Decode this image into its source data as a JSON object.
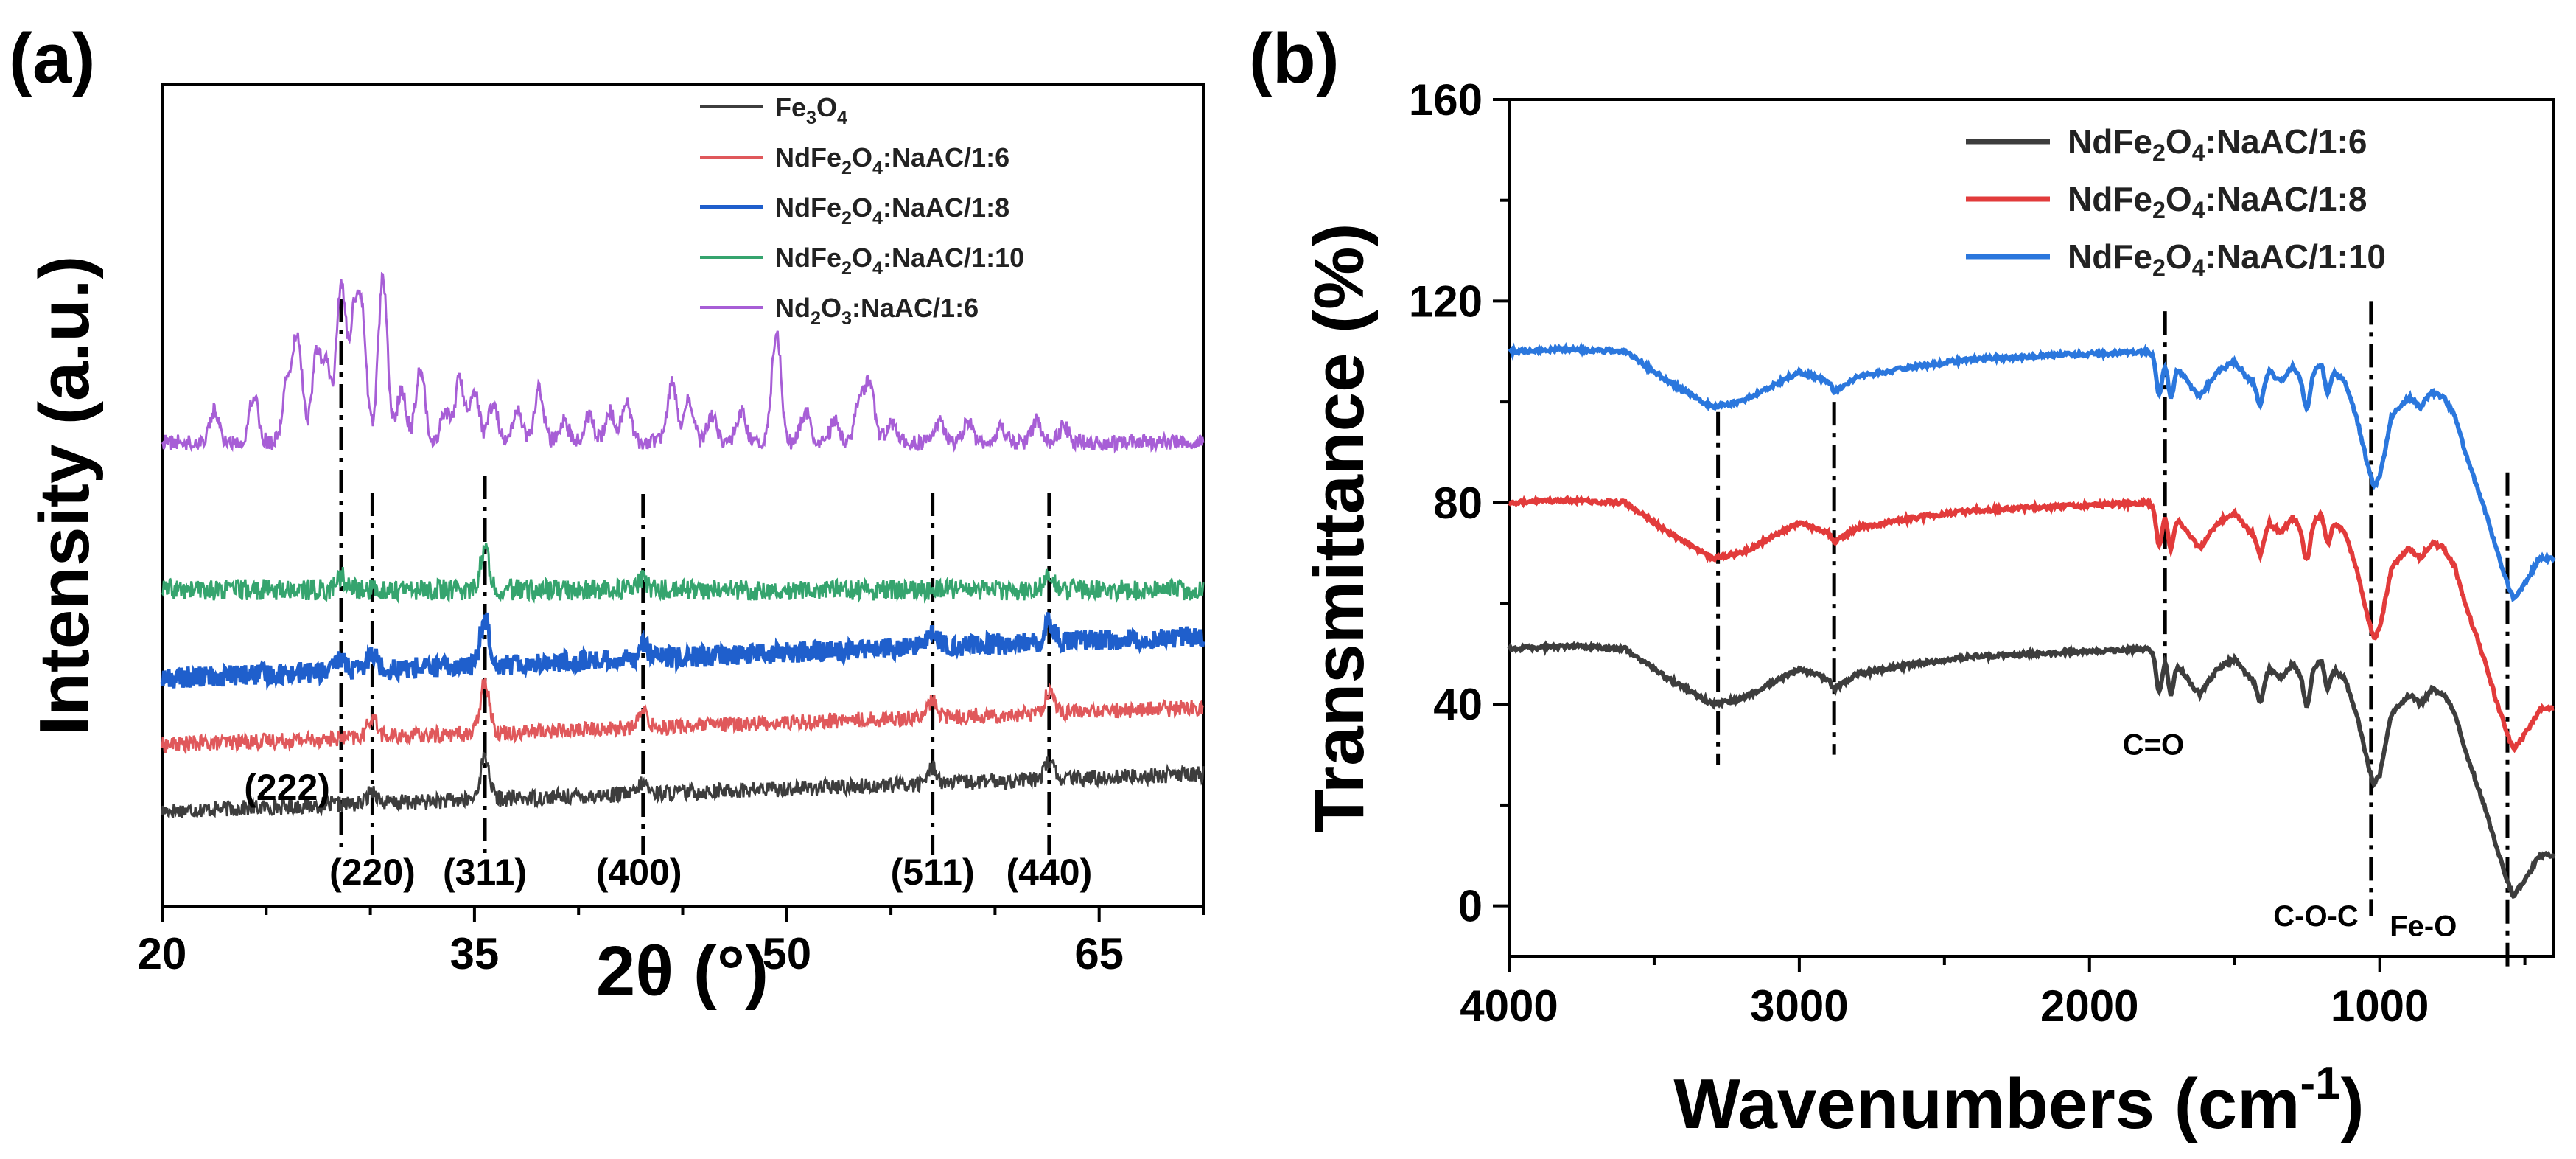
{
  "chart_data": [
    {
      "type": "line",
      "panel_label": "(a)",
      "xlabel": "2θ (°)",
      "ylabel": "Intensity (a.u.)",
      "xlim": [
        20,
        70
      ],
      "xticks": [
        20,
        35,
        50,
        65
      ],
      "legend_position": "top-right",
      "series": [
        {
          "name": "Fe3O4",
          "legend_parts": [
            "Fe",
            "3",
            "O",
            "4",
            ""
          ],
          "color": "#3d3d3d",
          "base": 0,
          "peaks": [
            [
              30.1,
              5
            ],
            [
              35.5,
              16
            ],
            [
              43.1,
              4
            ],
            [
              57.0,
              6
            ],
            [
              62.6,
              7
            ]
          ],
          "noise": 3,
          "drift": 14
        },
        {
          "name": "NdFe2O4:NaAC/1:6",
          "legend_parts": [
            "NdFe",
            "2",
            "O",
            "4",
            ":NaAC/1:6"
          ],
          "color": "#e0585b",
          "base": 1,
          "peaks": [
            [
              30.1,
              8
            ],
            [
              35.5,
              20
            ],
            [
              43.1,
              6
            ],
            [
              57.0,
              6
            ],
            [
              62.6,
              8
            ]
          ],
          "noise": 3,
          "drift": 14
        },
        {
          "name": "NdFe2O4:NaAC/1:8",
          "legend_parts": [
            "NdFe",
            "2",
            "O",
            "4",
            ":NaAC/1:8"
          ],
          "color": "#1f5fcc",
          "base": 2,
          "peaks": [
            [
              28.6,
              5
            ],
            [
              30.1,
              7
            ],
            [
              35.5,
              18
            ],
            [
              43.1,
              6
            ],
            [
              57.0,
              7
            ],
            [
              62.6,
              8
            ]
          ],
          "noise": 4,
          "drift": 16
        },
        {
          "name": "NdFe2O4:NaAC/1:10",
          "legend_parts": [
            "NdFe",
            "2",
            "O",
            "4",
            ":NaAC/1:10"
          ],
          "color": "#35a46e",
          "base": 3,
          "peaks": [
            [
              28.6,
              5
            ],
            [
              35.5,
              15
            ],
            [
              43.1,
              4
            ],
            [
              62.6,
              5
            ]
          ],
          "noise": 4,
          "drift": 0
        },
        {
          "name": "Nd2O3:NaAC/1:6",
          "legend_parts": [
            "Nd",
            "2",
            "O",
            "3",
            ":NaAC/1:6"
          ],
          "color": "#a75ed6",
          "base": 4,
          "peaks": [
            [
              22.5,
              12
            ],
            [
              24.4,
              18
            ],
            [
              26.0,
              22
            ],
            [
              26.5,
              40
            ],
            [
              27.4,
              32
            ],
            [
              27.9,
              28
            ],
            [
              28.6,
              60
            ],
            [
              29.2,
              42
            ],
            [
              29.6,
              45
            ],
            [
              30.6,
              62
            ],
            [
              31.5,
              20
            ],
            [
              32.4,
              28
            ],
            [
              33.6,
              12
            ],
            [
              34.3,
              24
            ],
            [
              35.0,
              20
            ],
            [
              35.9,
              15
            ],
            [
              37.1,
              12
            ],
            [
              38.1,
              20
            ],
            [
              39.3,
              8
            ],
            [
              40.5,
              10
            ],
            [
              41.5,
              12
            ],
            [
              42.3,
              16
            ],
            [
              44.5,
              22
            ],
            [
              45.3,
              16
            ],
            [
              46.4,
              10
            ],
            [
              47.8,
              12
            ],
            [
              49.5,
              42
            ],
            [
              50.9,
              12
            ],
            [
              52.3,
              8
            ],
            [
              53.5,
              16
            ],
            [
              54.0,
              22
            ],
            [
              55.0,
              8
            ],
            [
              57.3,
              8
            ],
            [
              58.7,
              8
            ],
            [
              60.3,
              6
            ],
            [
              62.0,
              8
            ],
            [
              63.3,
              6
            ]
          ],
          "noise": 3,
          "drift": 0
        }
      ],
      "reference_lines_2theta": [
        28.6,
        30.1,
        35.5,
        43.1,
        57.0,
        62.6
      ],
      "peak_annotations": [
        {
          "label": "(222)",
          "x": 26.0
        },
        {
          "label": "(220)",
          "x": 30.1
        },
        {
          "label": "(311)",
          "x": 35.5
        },
        {
          "label": "(400)",
          "x": 42.9
        },
        {
          "label": "(511)",
          "x": 57.0
        },
        {
          "label": "(440)",
          "x": 62.6
        }
      ]
    },
    {
      "type": "line",
      "panel_label": "(b)",
      "xlabel": "Wavenumbers (cm",
      "xlabel_sup": "-1",
      "xlabel_end": ")",
      "ylabel": "Transmittance (%)",
      "xlim": [
        4000,
        400
      ],
      "ylim": [
        -10,
        160
      ],
      "xticks": [
        4000,
        3000,
        2000,
        1000
      ],
      "yticks": [
        0,
        40,
        80,
        120,
        160
      ],
      "legend_position": "top-right",
      "series": [
        {
          "name": "NdFe2O4:NaAC/1:6",
          "legend_parts": [
            "NdFe",
            "2",
            "O",
            "4",
            ":NaAC/1:6"
          ],
          "color": "#3d3d3d",
          "offset": 0
        },
        {
          "name": "NdFe2O4:NaAC/1:8",
          "legend_parts": [
            "NdFe",
            "2",
            "O",
            "4",
            ":NaAC/1:8"
          ],
          "color": "#e23b3b",
          "offset": 29
        },
        {
          "name": "NdFe2O4:NaAC/1:10",
          "legend_parts": [
            "NdFe",
            "2",
            "O",
            "4",
            ":NaAC/1:10"
          ],
          "color": "#2b77dd",
          "offset": 59
        }
      ],
      "base_profile": [
        [
          4000,
          51
        ],
        [
          3800,
          51.5
        ],
        [
          3600,
          51
        ],
        [
          3450,
          45
        ],
        [
          3300,
          40
        ],
        [
          3200,
          41
        ],
        [
          3100,
          44
        ],
        [
          3000,
          47
        ],
        [
          2900,
          45
        ],
        [
          2880,
          43
        ],
        [
          2800,
          46
        ],
        [
          2600,
          48
        ],
        [
          2400,
          49.5
        ],
        [
          2200,
          50
        ],
        [
          2000,
          50.5
        ],
        [
          1800,
          51
        ],
        [
          1740,
          50
        ],
        [
          1700,
          48
        ],
        [
          1650,
          44
        ],
        [
          1620,
          42
        ],
        [
          1560,
          47
        ],
        [
          1500,
          49
        ],
        [
          1460,
          46
        ],
        [
          1420,
          44
        ],
        [
          1380,
          47
        ],
        [
          1340,
          45
        ],
        [
          1300,
          48
        ],
        [
          1260,
          45
        ],
        [
          1200,
          49
        ],
        [
          1160,
          47
        ],
        [
          1120,
          45
        ],
        [
          1080,
          38
        ],
        [
          1040,
          28
        ],
        [
          1020,
          24
        ],
        [
          1000,
          26
        ],
        [
          960,
          38
        ],
        [
          900,
          42
        ],
        [
          860,
          40
        ],
        [
          820,
          43
        ],
        [
          780,
          42
        ],
        [
          740,
          38
        ],
        [
          700,
          30
        ],
        [
          640,
          20
        ],
        [
          600,
          12
        ],
        [
          560,
          5
        ],
        [
          540,
          2
        ],
        [
          500,
          5
        ],
        [
          450,
          10
        ]
      ],
      "sharp_features": [
        [
          1760,
          8
        ],
        [
          1720,
          7
        ],
        [
          1410,
          4
        ],
        [
          1250,
          6
        ],
        [
          1180,
          5
        ]
      ],
      "reference_lines_cm": [
        3280,
        2880,
        1740,
        1030,
        560
      ],
      "annotations": [
        {
          "label": "C=O",
          "x": 1780,
          "y": 30
        },
        {
          "label": "C-O-C",
          "x": 1220,
          "y": -4
        },
        {
          "label": "Fe-O",
          "x": 850,
          "y": -6
        }
      ]
    }
  ]
}
